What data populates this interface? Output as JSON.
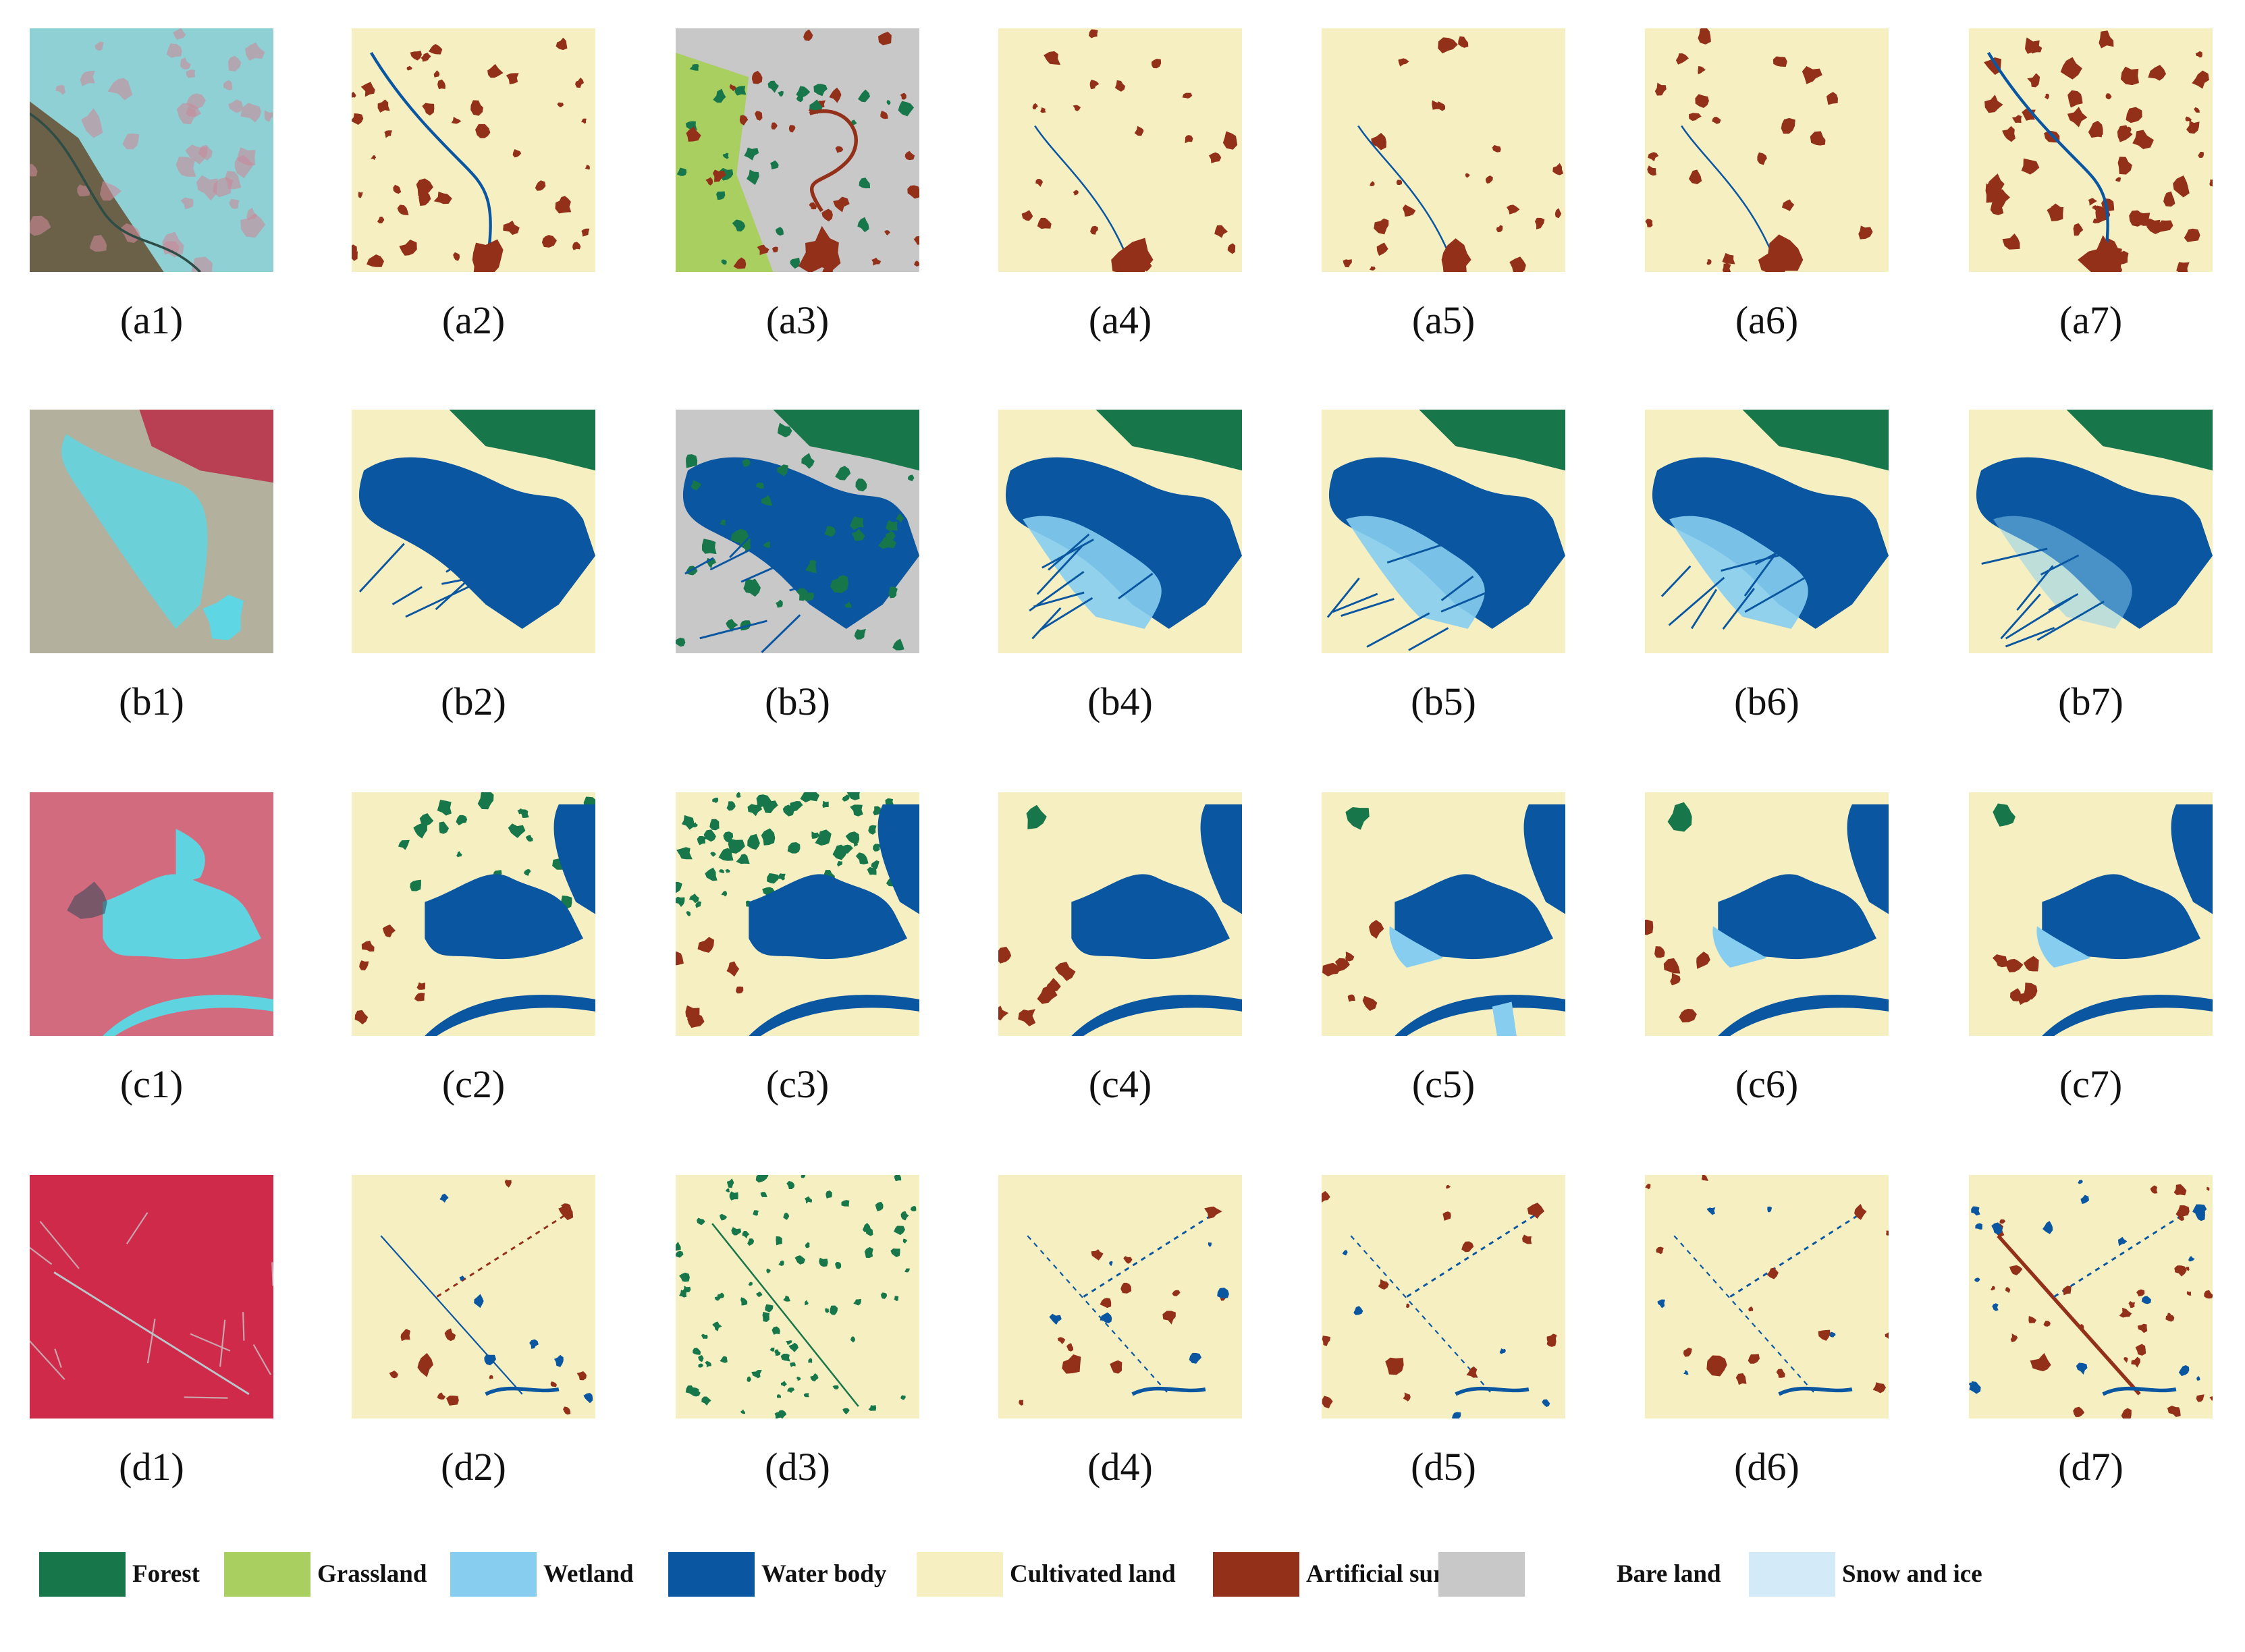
{
  "figure": {
    "rows": [
      "a",
      "b",
      "c",
      "d"
    ],
    "columns": [
      "1",
      "2",
      "3",
      "4",
      "5",
      "6",
      "7"
    ],
    "column_kind": {
      "1": "false-color satellite image",
      "2": "land-cover map",
      "3": "land-cover map",
      "4": "land-cover map",
      "5": "land-cover map",
      "6": "land-cover map",
      "7": "land-cover map"
    },
    "captions": {
      "a": [
        "(a1)",
        "(a2)",
        "(a3)",
        "(a4)",
        "(a5)",
        "(a6)",
        "(a7)"
      ],
      "b": [
        "(b1)",
        "(b2)",
        "(b3)",
        "(b4)",
        "(b5)",
        "(b6)",
        "(b7)"
      ],
      "c": [
        "(c1)",
        "(c2)",
        "(c3)",
        "(c4)",
        "(c5)",
        "(c6)",
        "(c7)"
      ],
      "d": [
        "(d1)",
        "(d2)",
        "(d3)",
        "(d4)",
        "(d5)",
        "(d6)",
        "(d7)"
      ]
    },
    "scene_notes": {
      "a": "cultivated land with scattered artificial-surface patches and a winding river",
      "b": "large lake/water body with wetlands and forested hills to the north",
      "c": "lake with surrounding cultivated land, river along the bottom",
      "d": "intensively cultivated plain crossed by roads and canals"
    }
  },
  "legend": {
    "items": [
      {
        "label": "Forest",
        "color": "#17774a"
      },
      {
        "label": "Grassland",
        "color": "#a8cf5f"
      },
      {
        "label": "Wetland",
        "color": "#86cdf0"
      },
      {
        "label": "Water body",
        "color": "#0a56a0"
      },
      {
        "label": "Cultivated land",
        "color": "#f6efc2"
      },
      {
        "label": "Artificial surface",
        "color": "#93301a"
      },
      {
        "label": "Bare land",
        "color": "#c8c8c8"
      },
      {
        "label": "Snow and ice",
        "color": "#d3ebf8"
      }
    ]
  },
  "colors": {
    "forest": "#17774a",
    "grassland": "#a8cf5f",
    "wetland": "#86cdf0",
    "water": "#0a56a0",
    "cultivated": "#f6efc2",
    "artificial": "#93301a",
    "bare": "#c8c8c8",
    "snow_ice": "#d3ebf8",
    "satellite_a": "#8fd0d4",
    "satellite_a_dark": "#6b6048",
    "satellite_b": "#b3b09d",
    "satellite_b_water": "#5fd6e4",
    "satellite_b_urban": "#b84052",
    "satellite_c": "#d26b7d",
    "satellite_c_water": "#5fd3e0",
    "satellite_d": "#cf2a4a"
  }
}
